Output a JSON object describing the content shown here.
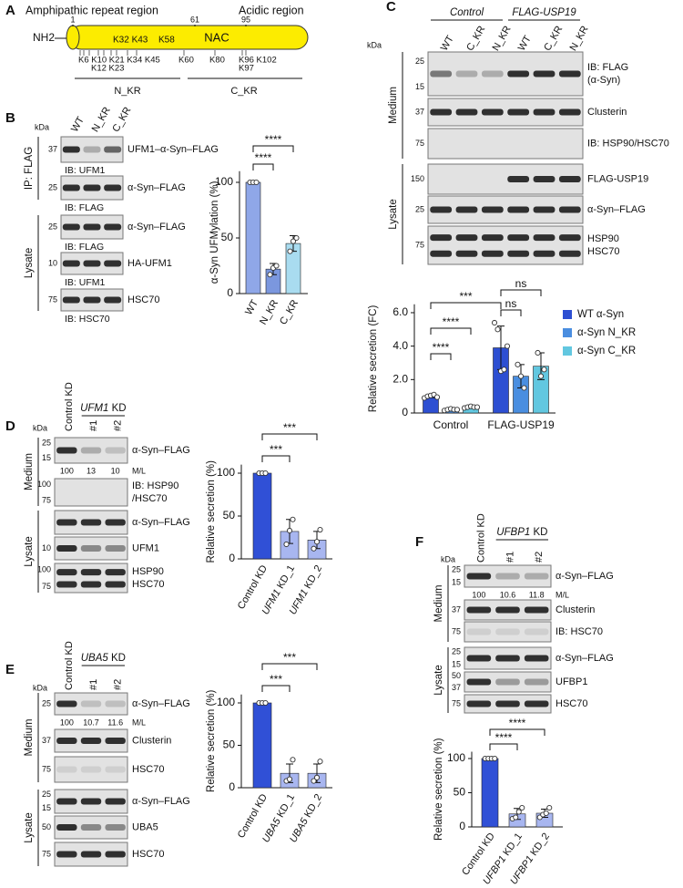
{
  "panel_a": {
    "letter": "A",
    "region_labels": [
      "Amphipathic repeat region",
      "Acidic region"
    ],
    "positions": [
      "1",
      "61",
      "95"
    ],
    "terminus": "NH2",
    "domain": "NAC",
    "top_sites": [
      "K32 K43",
      "K58"
    ],
    "bottom_sites": [
      "K6 K10 K21 K34 K45",
      "K12 K23",
      "K60",
      "K80",
      "K96 K102",
      "K97"
    ],
    "groups": [
      "N_KR",
      "C_KR"
    ]
  },
  "blots": [
    {
      "letter": "B",
      "kda": "kDa",
      "column_labels": [
        "WT",
        "N_KR",
        "C_KR"
      ],
      "sections": [
        {
          "label": "IP: FLAG",
          "blots": [
            {
              "mw": [
                "37"
              ],
              "label": [
                "UFM1–α-Syn–FLAG"
              ],
              "below": "IB: UFM1"
            },
            {
              "mw": [
                "25"
              ],
              "label": [
                "α-Syn–FLAG"
              ],
              "below": "IB: FLAG"
            }
          ]
        },
        {
          "label": "Lysate",
          "blots": [
            {
              "mw": [
                "25"
              ],
              "label": [
                "α-Syn–FLAG"
              ],
              "below": "IB: FLAG"
            },
            {
              "mw": [
                "10"
              ],
              "label": [
                "HA-UFM1"
              ],
              "below": "IB: UFM1"
            },
            {
              "mw": [
                "75"
              ],
              "label": [
                "HSC70"
              ],
              "below": "IB: HSC70"
            }
          ]
        }
      ]
    },
    {
      "letter": "C",
      "kda": "kDa",
      "header": [
        "Control",
        "FLAG-USP19"
      ],
      "column_labels": [
        "WT",
        "C_KR",
        "N_KR",
        "WT",
        "C_KR",
        "N_KR"
      ],
      "sections": [
        {
          "label": "Medium",
          "blots": [
            {
              "mw": [
                "25",
                "15"
              ],
              "label": [
                "IB: FLAG",
                "(α-Syn)"
              ]
            },
            {
              "mw": [
                "37"
              ],
              "label": [
                "Clusterin"
              ]
            },
            {
              "mw": [
                "75"
              ],
              "label": [
                "IB: HSP90/HSC70"
              ]
            }
          ]
        },
        {
          "label": "Lysate",
          "blots": [
            {
              "mw": [
                "150"
              ],
              "label": [
                "FLAG-USP19"
              ]
            },
            {
              "mw": [
                "25"
              ],
              "label": [
                "α-Syn–FLAG"
              ]
            },
            {
              "mw": [
                "75"
              ],
              "label": [
                "HSP90",
                "HSC70"
              ]
            }
          ]
        }
      ]
    },
    {
      "letter": "D",
      "kda": "kDa",
      "header": [
        "UFM1 KD"
      ],
      "column_labels": [
        "Control KD",
        "#1",
        "#2"
      ],
      "sections": [
        {
          "label": "Medium",
          "blots": [
            {
              "mw": [
                "25",
                "15"
              ],
              "label": [
                "α-Syn–FLAG"
              ],
              "quant": [
                "100",
                "13",
                "10",
                "M/L"
              ]
            },
            {
              "mw": [
                "100",
                "75"
              ],
              "label": [
                "IB: HSP90",
                "/HSC70"
              ]
            }
          ]
        },
        {
          "label": "Lysate",
          "blots": [
            {
              "mw": [],
              "label": [
                "α-Syn–FLAG"
              ]
            },
            {
              "mw": [
                "10"
              ],
              "label": [
                "UFM1"
              ]
            },
            {
              "mw": [
                "100",
                "75"
              ],
              "label": [
                "HSP90",
                "HSC70"
              ]
            }
          ]
        }
      ]
    },
    {
      "letter": "E",
      "kda": "kDa",
      "header": [
        "UBA5 KD"
      ],
      "column_labels": [
        "Control KD",
        "#1",
        "#2"
      ],
      "sections": [
        {
          "label": "Medium",
          "blots": [
            {
              "mw": [
                "25"
              ],
              "label": [
                "α-Syn–FLAG"
              ],
              "quant": [
                "100",
                "10.7",
                "11.6",
                "M/L"
              ]
            },
            {
              "mw": [
                "37"
              ],
              "label": [
                "Clusterin"
              ]
            },
            {
              "mw": [
                "75"
              ],
              "label": [
                "HSC70"
              ]
            }
          ]
        },
        {
          "label": "Lysate",
          "blots": [
            {
              "mw": [
                "25",
                "15"
              ],
              "label": [
                "α-Syn–FLAG"
              ]
            },
            {
              "mw": [
                "50"
              ],
              "label": [
                "UBA5"
              ]
            },
            {
              "mw": [
                "75"
              ],
              "label": [
                "HSC70"
              ]
            }
          ]
        }
      ]
    },
    {
      "letter": "F",
      "kda": "kDa",
      "header": [
        "UFBP1 KD"
      ],
      "column_labels": [
        "Control KD",
        "#1",
        "#2"
      ],
      "sections": [
        {
          "label": "Medium",
          "blots": [
            {
              "mw": [
                "25",
                "15"
              ],
              "label": [
                "α-Syn–FLAG"
              ],
              "quant": [
                "100",
                "10.6",
                "11.8",
                "M/L"
              ]
            },
            {
              "mw": [
                "37"
              ],
              "label": [
                "Clusterin"
              ]
            },
            {
              "mw": [
                "75"
              ],
              "label": [
                "IB: HSC70"
              ]
            }
          ]
        },
        {
          "label": "Lysate",
          "blots": [
            {
              "mw": [
                "25",
                "15"
              ],
              "label": [
                "α-Syn–FLAG"
              ]
            },
            {
              "mw": [
                "50",
                "37"
              ],
              "label": [
                "UFBP1"
              ]
            },
            {
              "mw": [
                "75"
              ],
              "label": [
                "HSC70"
              ]
            }
          ]
        }
      ]
    }
  ],
  "chart_data": [
    {
      "type": "bar",
      "y_label": "α-Syn UFMylation (%)",
      "categories": [
        "WT",
        "N_KR",
        "C_KR"
      ],
      "values": [
        100,
        22,
        45
      ],
      "errors": [
        0.5,
        5,
        7
      ],
      "points": [
        [
          100,
          100,
          100
        ],
        [
          17,
          23,
          25
        ],
        [
          38,
          47,
          50
        ]
      ],
      "colors": [
        "#8fa7e8",
        "#7b97de",
        "#a9dcf0"
      ],
      "ylim": [
        0,
        110
      ],
      "yticks": [
        0,
        50,
        100
      ],
      "annotations": [
        "****",
        "****"
      ]
    },
    {
      "type": "grouped_bar",
      "y_label": "Relative secretion (FC)",
      "categories": [
        "Control",
        "FLAG-USP19"
      ],
      "series": [
        {
          "name": "WT α-Syn",
          "color": "#2d4fd2",
          "values": [
            1,
            3.9
          ],
          "errors": [
            0.08,
            1.3
          ],
          "points": [
            [
              0.9,
              1,
              1.05,
              1.1,
              0.95
            ],
            [
              5.4,
              5,
              2.5,
              2.6,
              4
            ]
          ]
        },
        {
          "name": "α-Syn N_KR",
          "color": "#4a8ee0",
          "values": [
            0.2,
            2.2
          ],
          "errors": [
            0.05,
            0.7
          ],
          "points": [
            [
              0.15,
              0.2,
              0.25,
              0.2,
              0.2
            ],
            [
              2.9,
              2.2,
              1.5
            ]
          ]
        },
        {
          "name": "α-Syn C_KR",
          "color": "#62c7e0",
          "values": [
            0.35,
            2.8
          ],
          "errors": [
            0.05,
            0.8
          ],
          "points": [
            [
              0.3,
              0.35,
              0.4,
              0.35,
              0.35
            ],
            [
              3.6,
              2.2,
              2.6
            ]
          ]
        }
      ],
      "ylim": [
        0,
        6.5
      ],
      "yticks": [
        0,
        {
          "value": 2,
          "label": "2.0"
        },
        {
          "value": 4,
          "label": "4.0"
        },
        {
          "value": 6,
          "label": "6.0"
        }
      ],
      "legend": "right",
      "annotations": [
        "***",
        "****",
        "****",
        "ns",
        "ns"
      ]
    },
    {
      "type": "bar",
      "y_label": "Relative secretion (%)",
      "categories": [
        "Control KD",
        "UFM1 KD_1",
        "UFM1 KD_2"
      ],
      "values": [
        100,
        32,
        22
      ],
      "errors": [
        0.5,
        14,
        10
      ],
      "points": [
        [
          100,
          100,
          100
        ],
        [
          17,
          33,
          46
        ],
        [
          12,
          20,
          34
        ]
      ],
      "colors": [
        "#3050d6",
        "#a8b6f0",
        "#a8b6f0"
      ],
      "ylim": [
        0,
        110
      ],
      "yticks": [
        0,
        50,
        100
      ],
      "annotations": [
        "***",
        "***"
      ]
    },
    {
      "type": "bar",
      "y_label": "Relative secretion (%)",
      "categories": [
        "Control KD",
        "UBA5 KD_1",
        "UBA5 KD_2"
      ],
      "values": [
        100,
        17,
        17
      ],
      "errors": [
        0.5,
        11,
        11
      ],
      "points": [
        [
          100,
          100,
          100
        ],
        [
          8,
          10,
          33
        ],
        [
          8,
          12,
          31
        ]
      ],
      "colors": [
        "#3050d6",
        "#a8b6f0",
        "#a8b6f0"
      ],
      "ylim": [
        0,
        110
      ],
      "yticks": [
        0,
        50,
        100
      ],
      "annotations": [
        "***",
        "***"
      ]
    },
    {
      "type": "bar",
      "y_label": "Relative secretion (%)",
      "categories": [
        "Control KD",
        "UFBP1 KD_1",
        "UFBP1 KD_2"
      ],
      "values": [
        100,
        19,
        20
      ],
      "errors": [
        0.5,
        8,
        6
      ],
      "points": [
        [
          100,
          100,
          100,
          100
        ],
        [
          12,
          14,
          22,
          28
        ],
        [
          14,
          18,
          20,
          28
        ]
      ],
      "colors": [
        "#3050d6",
        "#a8b6f0",
        "#a8b6f0"
      ],
      "ylim": [
        0,
        110
      ],
      "yticks": [
        0,
        50,
        100
      ],
      "annotations": [
        "****",
        "****"
      ]
    }
  ]
}
